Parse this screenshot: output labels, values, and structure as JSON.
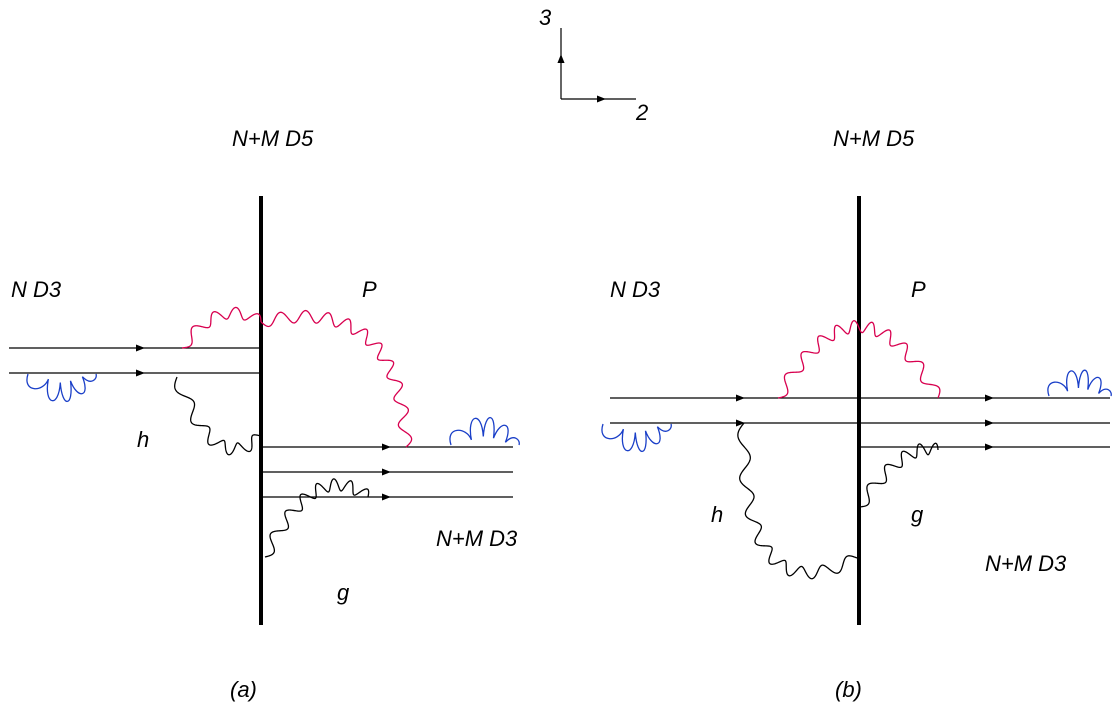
{
  "axes": {
    "vertical_label": "3",
    "horizontal_label": "2"
  },
  "colors": {
    "ink": "#000000",
    "open_string_red": "#d8004f",
    "open_string_blue": "#1a3fc8"
  },
  "panel_a": {
    "caption": "(a)",
    "d5_label": "N+M D5",
    "left_d3_label": "N D3",
    "right_d3_label": "N+M D3",
    "string_P": "P",
    "string_h": "h",
    "string_g": "g"
  },
  "panel_b": {
    "caption": "(b)",
    "d5_label": "N+M D5",
    "left_d3_label": "N D3",
    "right_d3_label": "N+M D3",
    "string_P": "P",
    "string_h": "h",
    "string_g": "g"
  }
}
